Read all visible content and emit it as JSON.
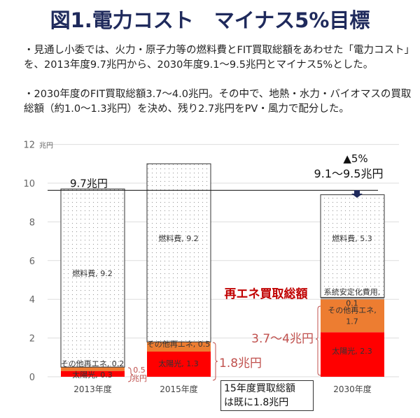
{
  "title": "図1.電力コスト　マイナス5%目標",
  "paragraphs": [
    "・見通し小委では、火力・原子力等の燃料費とFIT買取総額をあわせた「電力コスト」を、2013年度9.7兆円から、2030年度9.1〜9.5兆円とマイナス5%とした。",
    "・2030年度のFIT買取総額3.7〜4.0兆円。その中で、地熱・水力・バイオマスの買取総額（約1.0〜1.3兆円）を決め、残り2.7兆円をPV・風力で配分した。"
  ],
  "chart_data": {
    "type": "bar",
    "stacked": true,
    "categories": [
      "2013年度",
      "2015年度",
      "2030年度"
    ],
    "series": [
      {
        "name": "太陽光",
        "values": [
          0.3,
          1.3,
          2.3
        ],
        "color": "#ff0000"
      },
      {
        "name": "その他再エネ",
        "values": [
          0.2,
          0.5,
          1.7
        ],
        "color": "#ed7d31"
      },
      {
        "name": "系統安定化費用",
        "values": [
          0,
          0,
          0.1
        ],
        "color": "#a5a5a5"
      },
      {
        "name": "燃料費",
        "values": [
          9.2,
          9.2,
          5.3
        ],
        "color": "#ffffff"
      }
    ],
    "data_labels": [
      [
        "太陽光, 0.3",
        "その他再エネ, 0.2",
        "",
        "燃料費, 9.2"
      ],
      [
        "太陽光, 1.3",
        "その他再エネ, 0.5",
        "",
        "燃料費, 9.2"
      ],
      [
        "太陽光, 2.3",
        "その他再エネ,\n1.7",
        "系統安定化費用,\n0.1",
        "燃料費, 5.3"
      ]
    ],
    "ylim": [
      0,
      12
    ],
    "yticks": [
      0,
      2,
      4,
      6,
      8,
      10,
      12
    ],
    "yunit": "兆円",
    "grid": true,
    "reference_line": {
      "value": 9.7,
      "label": "9.7兆円"
    },
    "annotations": {
      "reduction": "▲5%",
      "target_range": "9.1〜9.5兆円",
      "fit_total_heading": "再エネ買取総額",
      "bracket_2013": "0.5\n兆円",
      "bracket_2015": "1.8兆円",
      "bracket_2030": "3.7〜4兆円",
      "note": "15年度買取総額\nは既に1.8兆円"
    }
  }
}
